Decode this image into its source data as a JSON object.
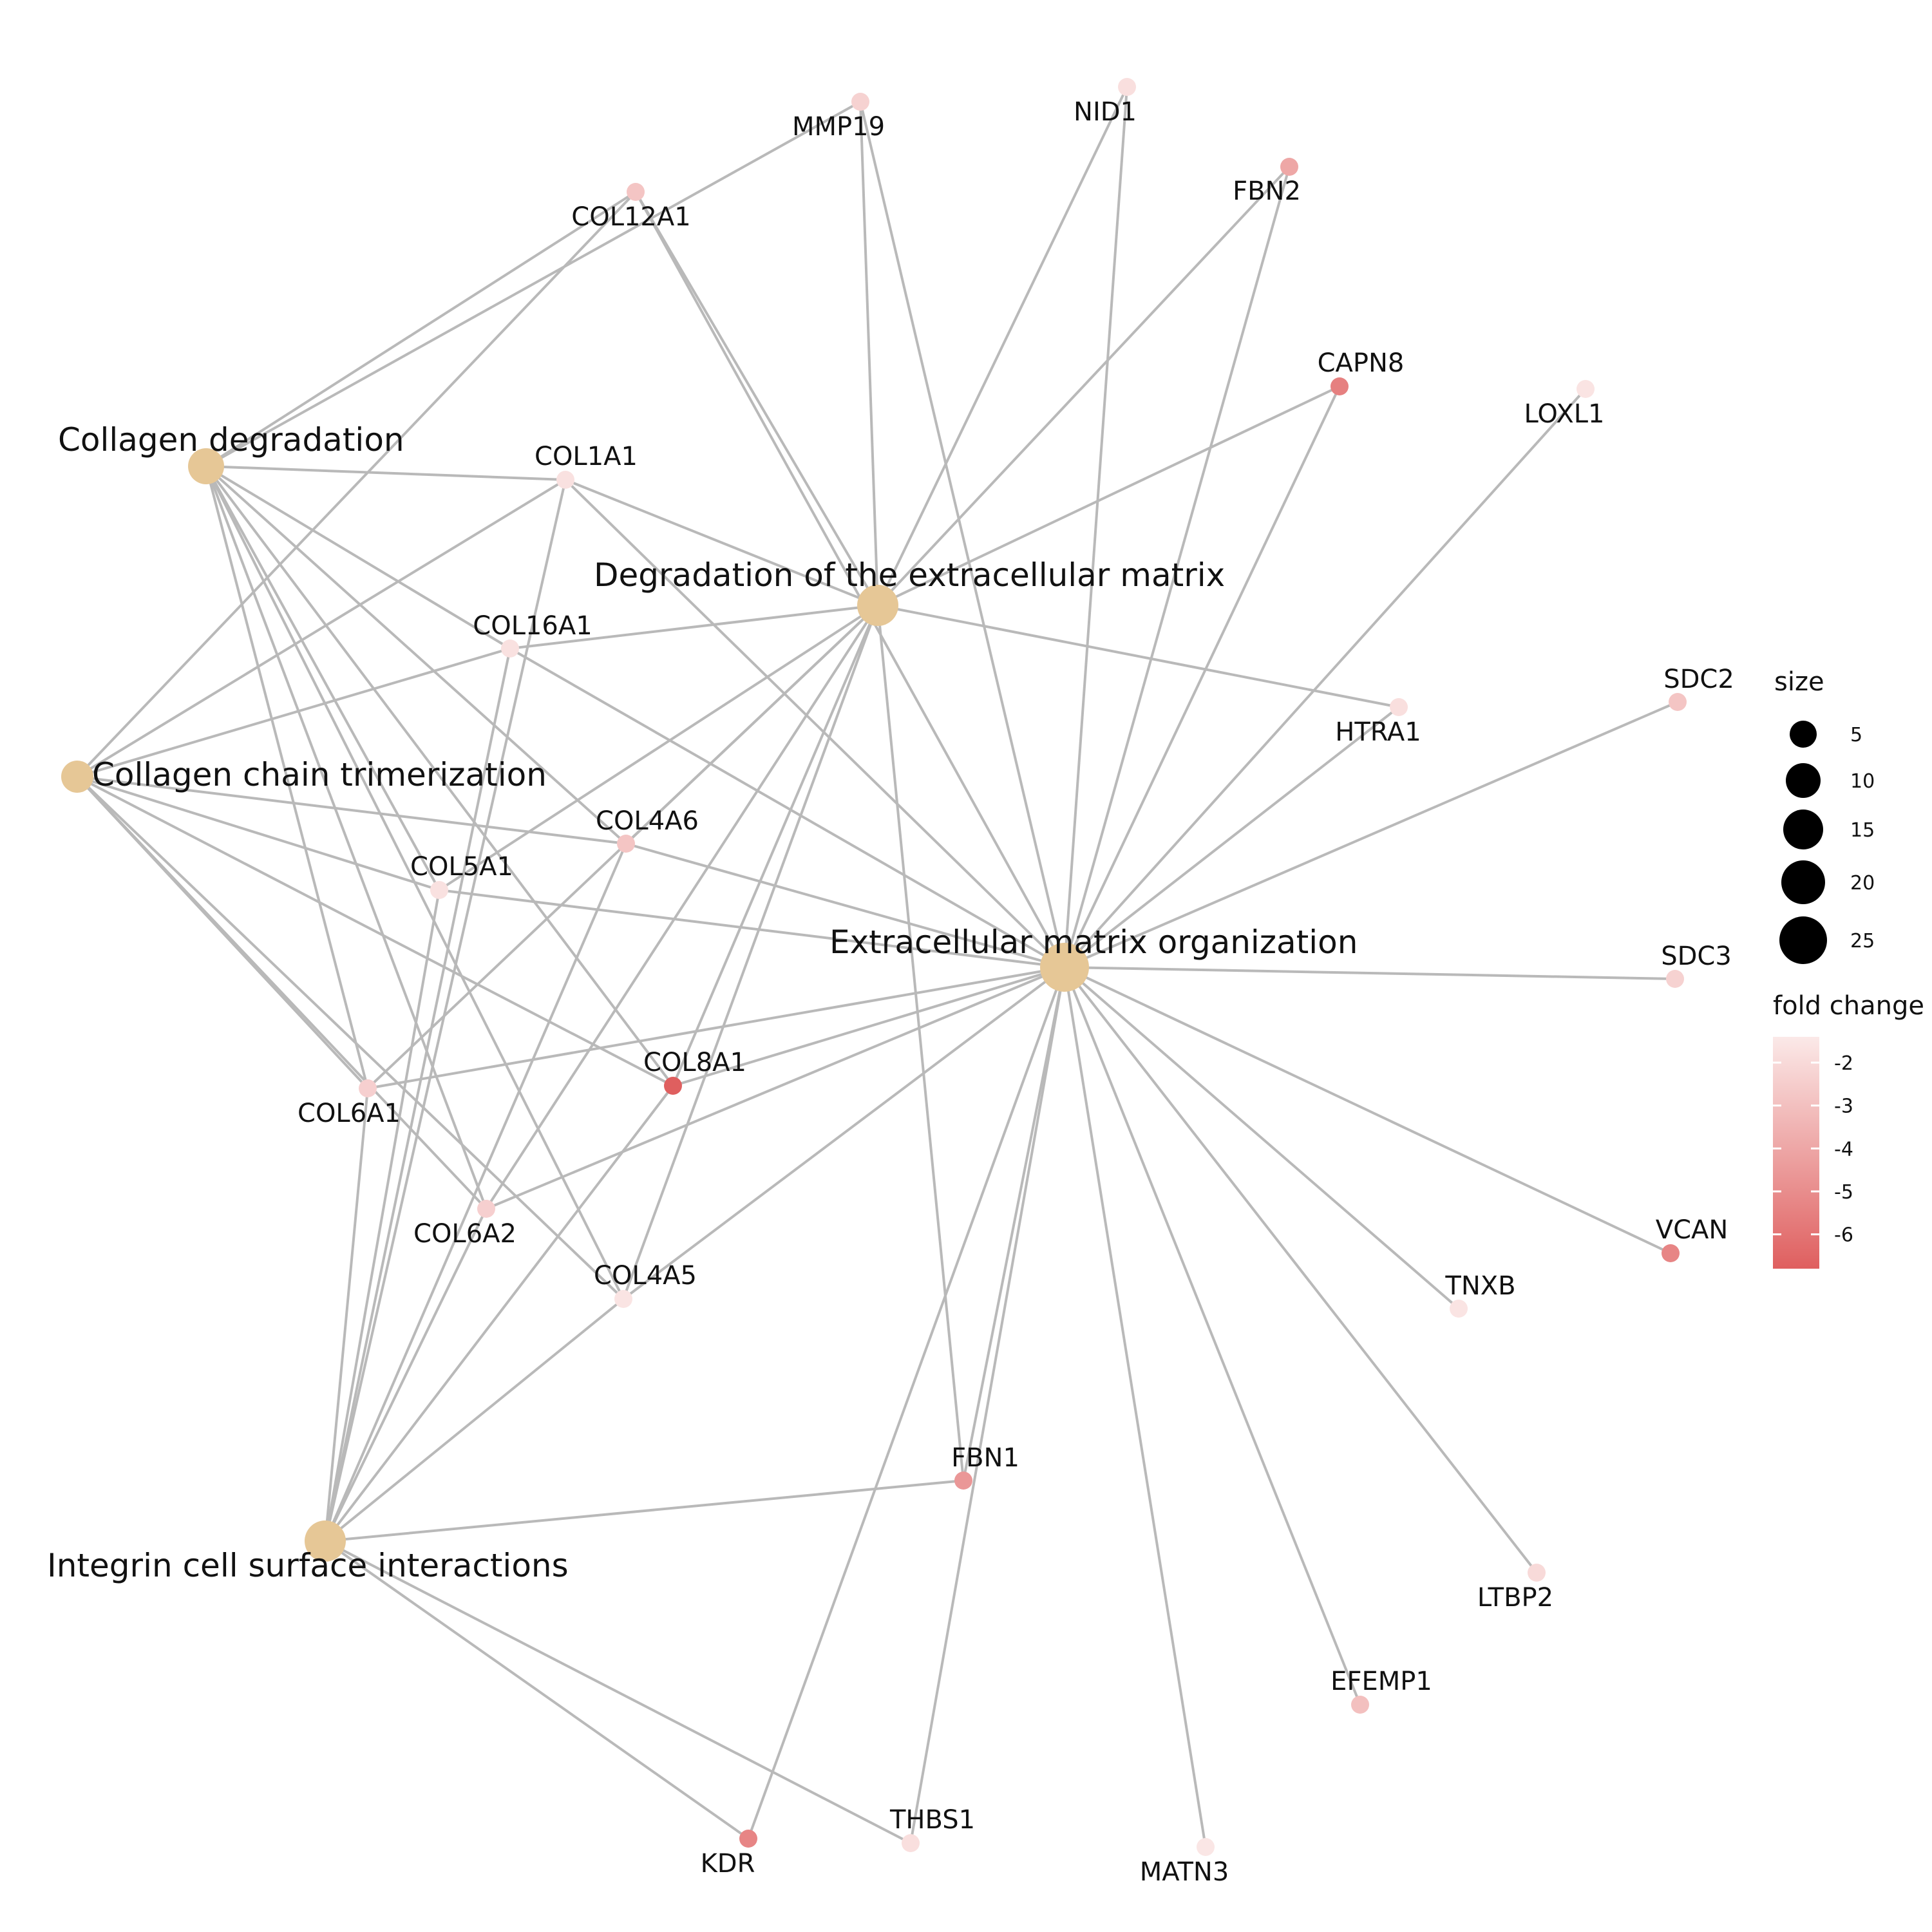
{
  "colors": {
    "edge": "#b9b9b9",
    "term_node": "#e6c796",
    "fold_change_low": "#df5f5f",
    "fold_change_high": "#fbe9e8",
    "legend_size_dot": "#000000"
  },
  "terms": [
    {
      "id": "cd",
      "label": "Collagen degradation"
    },
    {
      "id": "ct",
      "label": "Collagen chain trimerization"
    },
    {
      "id": "dem",
      "label": "Degradation of the extracellular matrix"
    },
    {
      "id": "emo",
      "label": "Extracellular matrix organization"
    },
    {
      "id": "ici",
      "label": "Integrin cell surface interactions"
    }
  ],
  "genes": [
    {
      "id": "MMP19",
      "label": "MMP19",
      "fold_change": -2.3
    },
    {
      "id": "NID1",
      "label": "NID1",
      "fold_change": -1.8
    },
    {
      "id": "FBN2",
      "label": "FBN2",
      "fold_change": -4.0
    },
    {
      "id": "COL12A1",
      "label": "COL12A1",
      "fold_change": -2.8
    },
    {
      "id": "CAPN8",
      "label": "CAPN8",
      "fold_change": -5.5
    },
    {
      "id": "LOXL1",
      "label": "LOXL1",
      "fold_change": -1.6
    },
    {
      "id": "COL1A1",
      "label": "COL1A1",
      "fold_change": -1.7
    },
    {
      "id": "COL16A1",
      "label": "COL16A1",
      "fold_change": -1.7
    },
    {
      "id": "HTRA1",
      "label": "HTRA1",
      "fold_change": -1.8
    },
    {
      "id": "SDC2",
      "label": "SDC2",
      "fold_change": -2.8
    },
    {
      "id": "COL4A6",
      "label": "COL4A6",
      "fold_change": -2.8
    },
    {
      "id": "COL5A1",
      "label": "COL5A1",
      "fold_change": -1.7
    },
    {
      "id": "SDC3",
      "label": "SDC3",
      "fold_change": -2.3
    },
    {
      "id": "COL8A1",
      "label": "COL8A1",
      "fold_change": -6.8
    },
    {
      "id": "COL6A1",
      "label": "COL6A1",
      "fold_change": -2.4
    },
    {
      "id": "COL6A2",
      "label": "COL6A2",
      "fold_change": -2.4
    },
    {
      "id": "COL4A5",
      "label": "COL4A5",
      "fold_change": -1.6
    },
    {
      "id": "VCAN",
      "label": "VCAN",
      "fold_change": -5.3
    },
    {
      "id": "TNXB",
      "label": "TNXB",
      "fold_change": -1.6
    },
    {
      "id": "FBN1",
      "label": "FBN1",
      "fold_change": -4.6
    },
    {
      "id": "LTBP2",
      "label": "LTBP2",
      "fold_change": -2.0
    },
    {
      "id": "EFEMP1",
      "label": "EFEMP1",
      "fold_change": -3.0
    },
    {
      "id": "KDR",
      "label": "KDR",
      "fold_change": -5.3
    },
    {
      "id": "THBS1",
      "label": "THBS1",
      "fold_change": -1.8
    },
    {
      "id": "MATN3",
      "label": "MATN3",
      "fold_change": -1.5
    }
  ],
  "edges": [
    [
      "cd",
      "COL12A1"
    ],
    [
      "cd",
      "MMP19"
    ],
    [
      "cd",
      "COL1A1"
    ],
    [
      "cd",
      "COL16A1"
    ],
    [
      "cd",
      "COL4A6"
    ],
    [
      "cd",
      "COL5A1"
    ],
    [
      "cd",
      "COL8A1"
    ],
    [
      "cd",
      "COL6A1"
    ],
    [
      "cd",
      "COL6A2"
    ],
    [
      "cd",
      "COL4A5"
    ],
    [
      "ct",
      "COL12A1"
    ],
    [
      "ct",
      "COL1A1"
    ],
    [
      "ct",
      "COL16A1"
    ],
    [
      "ct",
      "COL4A6"
    ],
    [
      "ct",
      "COL5A1"
    ],
    [
      "ct",
      "COL8A1"
    ],
    [
      "ct",
      "COL6A1"
    ],
    [
      "ct",
      "COL6A2"
    ],
    [
      "ct",
      "COL4A5"
    ],
    [
      "dem",
      "COL12A1"
    ],
    [
      "dem",
      "MMP19"
    ],
    [
      "dem",
      "NID1"
    ],
    [
      "dem",
      "FBN2"
    ],
    [
      "dem",
      "CAPN8"
    ],
    [
      "dem",
      "COL1A1"
    ],
    [
      "dem",
      "COL16A1"
    ],
    [
      "dem",
      "HTRA1"
    ],
    [
      "dem",
      "COL4A6"
    ],
    [
      "dem",
      "COL5A1"
    ],
    [
      "dem",
      "COL8A1"
    ],
    [
      "dem",
      "COL6A1"
    ],
    [
      "dem",
      "COL6A2"
    ],
    [
      "dem",
      "COL4A5"
    ],
    [
      "dem",
      "FBN1"
    ],
    [
      "emo",
      "COL12A1"
    ],
    [
      "emo",
      "MMP19"
    ],
    [
      "emo",
      "NID1"
    ],
    [
      "emo",
      "FBN2"
    ],
    [
      "emo",
      "CAPN8"
    ],
    [
      "emo",
      "LOXL1"
    ],
    [
      "emo",
      "COL1A1"
    ],
    [
      "emo",
      "COL16A1"
    ],
    [
      "emo",
      "HTRA1"
    ],
    [
      "emo",
      "SDC2"
    ],
    [
      "emo",
      "COL4A6"
    ],
    [
      "emo",
      "COL5A1"
    ],
    [
      "emo",
      "SDC3"
    ],
    [
      "emo",
      "COL8A1"
    ],
    [
      "emo",
      "COL6A1"
    ],
    [
      "emo",
      "COL6A2"
    ],
    [
      "emo",
      "COL4A5"
    ],
    [
      "emo",
      "VCAN"
    ],
    [
      "emo",
      "TNXB"
    ],
    [
      "emo",
      "FBN1"
    ],
    [
      "emo",
      "LTBP2"
    ],
    [
      "emo",
      "EFEMP1"
    ],
    [
      "emo",
      "KDR"
    ],
    [
      "emo",
      "THBS1"
    ],
    [
      "emo",
      "MATN3"
    ],
    [
      "ici",
      "COL1A1"
    ],
    [
      "ici",
      "COL16A1"
    ],
    [
      "ici",
      "COL4A6"
    ],
    [
      "ici",
      "COL5A1"
    ],
    [
      "ici",
      "COL8A1"
    ],
    [
      "ici",
      "COL6A1"
    ],
    [
      "ici",
      "COL6A2"
    ],
    [
      "ici",
      "COL4A5"
    ],
    [
      "ici",
      "FBN1"
    ],
    [
      "ici",
      "KDR"
    ],
    [
      "ici",
      "THBS1"
    ]
  ],
  "legend": {
    "size_title": "size",
    "size_items": [
      {
        "label": "5",
        "value": 5
      },
      {
        "label": "10",
        "value": 10
      },
      {
        "label": "15",
        "value": 15
      },
      {
        "label": "20",
        "value": 20
      },
      {
        "label": "25",
        "value": 25
      }
    ],
    "color_title": "fold change",
    "color_ticks": [
      {
        "label": "-2",
        "value": -2
      },
      {
        "label": "-3",
        "value": -3
      },
      {
        "label": "-4",
        "value": -4
      },
      {
        "label": "-5",
        "value": -5
      },
      {
        "label": "-6",
        "value": -6
      }
    ],
    "color_range": [
      -6.8,
      -1.4
    ]
  }
}
